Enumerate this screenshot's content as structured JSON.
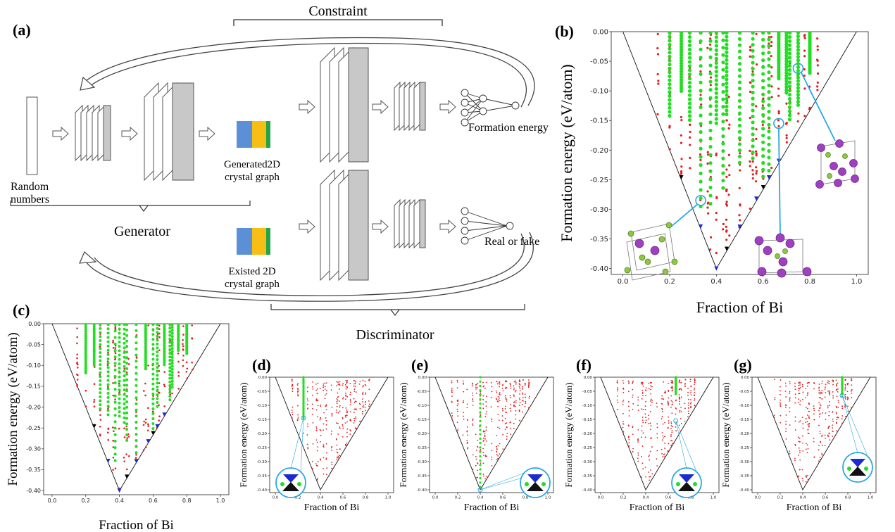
{
  "panel_labels": {
    "a": "(a)",
    "b": "(b)",
    "c": "(c)",
    "d": "(d)",
    "e": "(e)",
    "f": "(f)",
    "g": "(g)"
  },
  "diagram": {
    "constraint": "Constraint",
    "random_numbers_line1": "Random",
    "random_numbers_line2": "numbers",
    "generator": "Generator",
    "generated_line1": "Generated2D",
    "generated_line2": "crystal graph",
    "existed_line1": "Existed 2D",
    "existed_line2": "crystal graph",
    "formation_energy": "Formation energy",
    "real_or_fake": "Real or fake",
    "discriminator": "Discriminator",
    "graph_colors": {
      "blue": "#5b8fd6",
      "yellow": "#f7bf16",
      "green": "#23a34a"
    }
  },
  "colors": {
    "red_points": "#e02020",
    "green_points": "#22dd22",
    "blue_markers": "#1a2bd0",
    "black_markers": "#000000",
    "highlight_circle": "#2aa8e0",
    "atom_purple": "#a040c0",
    "atom_green": "#8fc840"
  },
  "chart_data": [
    {
      "panel": "(b)",
      "type": "scatter",
      "title": "",
      "xlabel": "Fraction of Bi",
      "ylabel": "Formation energy (eV/atom)",
      "xlim": [
        -0.05,
        1.05
      ],
      "ylim": [
        -0.41,
        0.0
      ],
      "xticks": [
        "0.0",
        "0.2",
        "0.4",
        "0.6",
        "0.8",
        "1.0"
      ],
      "yticks": [
        "0.00",
        "-0.05",
        "-0.10",
        "-0.15",
        "-0.20",
        "-0.25",
        "-0.30",
        "-0.35",
        "-0.40"
      ],
      "hull": [
        [
          0.0,
          0.0
        ],
        [
          0.4,
          -0.4
        ],
        [
          1.0,
          0.0
        ]
      ],
      "highlights": [
        [
          0.333,
          -0.285
        ],
        [
          0.667,
          -0.155
        ],
        [
          0.75,
          -0.062
        ]
      ],
      "grid": false
    },
    {
      "panel": "(c)",
      "type": "scatter",
      "xlabel": "Fraction of Bi",
      "ylabel": "Formation energy (eV/atom)",
      "xlim": [
        -0.05,
        1.05
      ],
      "ylim": [
        -0.41,
        0.0
      ],
      "xticks": [
        "0.0",
        "0.2",
        "0.4",
        "0.6",
        "0.8",
        "1.0"
      ],
      "yticks": [
        "0.00",
        "-0.05",
        "-0.10",
        "-0.15",
        "-0.20",
        "-0.25",
        "-0.30",
        "-0.35",
        "-0.40"
      ],
      "hull": [
        [
          0.0,
          0.0
        ],
        [
          0.4,
          -0.4
        ],
        [
          1.0,
          0.0
        ]
      ],
      "grid": false
    },
    {
      "panel": "(d)",
      "type": "scatter",
      "xlabel": "Fraction of Bi",
      "ylabel": "Formation energy (eV/atom)",
      "xlim": [
        -0.05,
        1.05
      ],
      "ylim": [
        -0.41,
        0.0
      ],
      "xticks": [
        "0.0",
        "0.2",
        "0.4",
        "0.6",
        "0.8",
        "1.0"
      ],
      "yticks": [
        "0.00",
        "-0.05",
        "-0.10",
        "-0.15",
        "-0.20",
        "-0.25",
        "-0.30",
        "-0.35",
        "-0.40"
      ],
      "hull": [
        [
          0.0,
          0.0
        ],
        [
          0.4,
          -0.4
        ],
        [
          1.0,
          0.0
        ]
      ],
      "green_column": {
        "x": 0.25,
        "y_from": 0.0,
        "y_to": -0.145
      },
      "highlight": [
        0.25,
        -0.145
      ],
      "grid": false
    },
    {
      "panel": "(e)",
      "type": "scatter",
      "xlabel": "Fraction of Bi",
      "ylabel": "Formation energy (eV/atom)",
      "xlim": [
        -0.05,
        1.05
      ],
      "ylim": [
        -0.41,
        0.0
      ],
      "xticks": [
        "0.0",
        "0.2",
        "0.4",
        "0.6",
        "0.8",
        "1.0"
      ],
      "yticks": [
        "0.00",
        "-0.05",
        "-0.10",
        "-0.15",
        "-0.20",
        "-0.25",
        "-0.30",
        "-0.35",
        "-0.40"
      ],
      "hull": [
        [
          0.0,
          0.0
        ],
        [
          0.4,
          -0.4
        ],
        [
          1.0,
          0.0
        ]
      ],
      "green_column": {
        "x": 0.4,
        "y_from": 0.0,
        "y_to": -0.39
      },
      "highlight": [
        0.4,
        -0.4
      ],
      "grid": false
    },
    {
      "panel": "(f)",
      "type": "scatter",
      "xlabel": "Fraction of Bi",
      "ylabel": "Formation energy (eV/atom)",
      "xlim": [
        -0.05,
        1.05
      ],
      "ylim": [
        -0.41,
        0.0
      ],
      "xticks": [
        "0.0",
        "0.2",
        "0.4",
        "0.6",
        "0.8",
        "1.0"
      ],
      "yticks": [
        "0.00",
        "-0.05",
        "-0.10",
        "-0.15",
        "-0.20",
        "-0.25",
        "-0.30",
        "-0.35",
        "-0.40"
      ],
      "hull": [
        [
          0.0,
          0.0
        ],
        [
          0.4,
          -0.4
        ],
        [
          1.0,
          0.0
        ]
      ],
      "green_column": {
        "x": 0.667,
        "y_from": 0.0,
        "y_to": -0.06
      },
      "highlight": [
        0.667,
        -0.155
      ],
      "grid": false
    },
    {
      "panel": "(g)",
      "type": "scatter",
      "xlabel": "Fraction of Bi",
      "ylabel": "Formation energy (eV/atom)",
      "xlim": [
        -0.05,
        1.05
      ],
      "ylim": [
        -0.41,
        0.0
      ],
      "xticks": [
        "0.0",
        "0.2",
        "0.4",
        "0.6",
        "0.8",
        "1.0"
      ],
      "yticks": [
        "0.00",
        "-0.05",
        "-0.10",
        "-0.15",
        "-0.20",
        "-0.25",
        "-0.30",
        "-0.35",
        "-0.40"
      ],
      "hull": [
        [
          0.0,
          0.0
        ],
        [
          0.4,
          -0.4
        ],
        [
          1.0,
          0.0
        ]
      ],
      "green_column": {
        "x": 0.75,
        "y_from": 0.0,
        "y_to": -0.06
      },
      "highlight": [
        0.75,
        -0.065
      ],
      "grid": false
    }
  ]
}
